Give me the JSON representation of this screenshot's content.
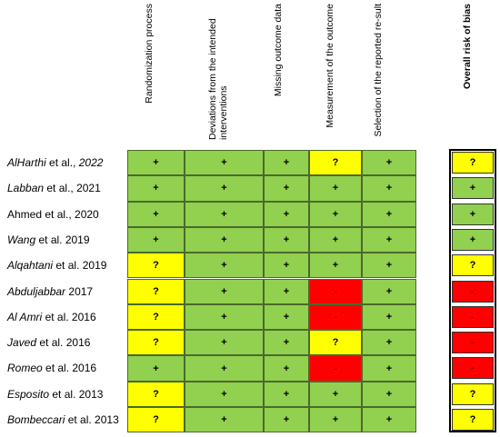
{
  "headers": [
    "Randomization process",
    "Deviations from the intended interventions",
    "Missing outcome data",
    "Measurement of the outcome",
    "Selection of the reported re-sult",
    "Overall risk of bias"
  ],
  "studies": [
    {
      "italic": "AlHarthi",
      "rest": " et al., ",
      "rest_italic": "2022",
      "cells": [
        "+",
        "+",
        "+",
        "?",
        "+"
      ],
      "colors": [
        "g",
        "g",
        "g",
        "y",
        "g"
      ],
      "overall": "?",
      "ocolor": "y"
    },
    {
      "italic": "Labban",
      "rest": " et al., 2021",
      "rest_italic": "",
      "cells": [
        "+",
        "+",
        "+",
        "+",
        "+"
      ],
      "colors": [
        "g",
        "g",
        "g",
        "g",
        "g"
      ],
      "overall": "+",
      "ocolor": "g"
    },
    {
      "italic": "",
      "rest": "Ahmed et al., 2020",
      "rest_italic": "",
      "cells": [
        "+",
        "+",
        "+",
        "+",
        "+"
      ],
      "colors": [
        "g",
        "g",
        "g",
        "g",
        "g"
      ],
      "overall": "+",
      "ocolor": "g"
    },
    {
      "italic": "Wang",
      "rest": " et al. 2019",
      "rest_italic": "",
      "cells": [
        "+",
        "+",
        "+",
        "+",
        "+"
      ],
      "colors": [
        "g",
        "g",
        "g",
        "g",
        "g"
      ],
      "overall": "+",
      "ocolor": "g"
    },
    {
      "italic": "Alqahtani",
      "rest": " et al. 2019",
      "rest_italic": "",
      "cells": [
        "?",
        "+",
        "+",
        "+",
        "+"
      ],
      "colors": [
        "y",
        "g",
        "g",
        "g",
        "g"
      ],
      "overall": "?",
      "ocolor": "y"
    },
    {
      "italic": "Abduljabbar",
      "rest": " 2017",
      "rest_italic": "",
      "cells": [
        "?",
        "+",
        "+",
        "-",
        "+"
      ],
      "colors": [
        "y",
        "g",
        "g",
        "r",
        "g"
      ],
      "overall": "-",
      "ocolor": "r"
    },
    {
      "italic": "Al Amri",
      "rest": " et al. 2016",
      "rest_italic": "",
      "cells": [
        "?",
        "+",
        "+",
        "-",
        "+"
      ],
      "colors": [
        "y",
        "g",
        "g",
        "r",
        "g"
      ],
      "overall": "-",
      "ocolor": "r"
    },
    {
      "italic": "Javed",
      "rest": " et al. 2016",
      "rest_italic": "",
      "cells": [
        "?",
        "+",
        "+",
        "?",
        "+"
      ],
      "colors": [
        "y",
        "g",
        "g",
        "y",
        "g"
      ],
      "overall": "-",
      "ocolor": "r"
    },
    {
      "italic": "Romeo",
      "rest": " et al. 2016",
      "rest_italic": "",
      "cells": [
        "+",
        "+",
        "+",
        "-",
        "+"
      ],
      "colors": [
        "g",
        "g",
        "g",
        "r",
        "g"
      ],
      "overall": "-",
      "ocolor": "r"
    },
    {
      "italic": "Esposito",
      "rest": " et al. 2013",
      "rest_italic": "",
      "cells": [
        "?",
        "+",
        "+",
        "+",
        "+"
      ],
      "colors": [
        "y",
        "g",
        "g",
        "g",
        "g"
      ],
      "overall": "?",
      "ocolor": "y"
    },
    {
      "italic": "Bombeccari",
      "rest": " et al. 2013",
      "rest_italic": "",
      "cells": [
        "?",
        "+",
        "+",
        "+",
        "+"
      ],
      "colors": [
        "y",
        "g",
        "g",
        "g",
        "g"
      ],
      "overall": "?",
      "ocolor": "y"
    }
  ],
  "colors": {
    "low": "#92d050",
    "some": "#ffff00",
    "high": "#ff0000"
  }
}
